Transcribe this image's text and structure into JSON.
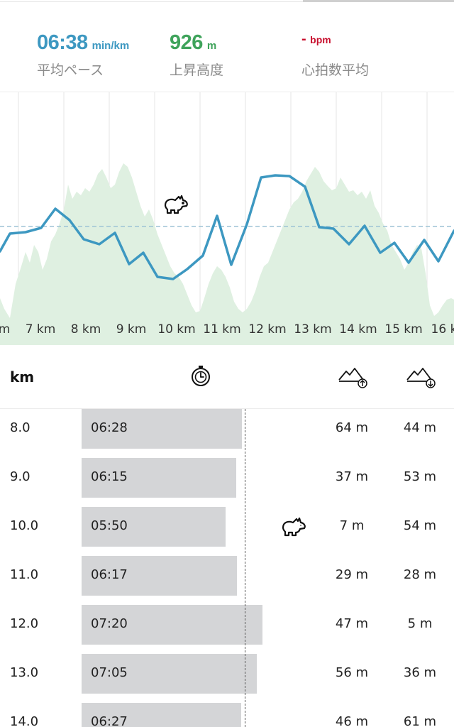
{
  "stats": [
    {
      "value": "06:38",
      "unit": "min/km",
      "label": "平均ペース",
      "color": "#3d98c1"
    },
    {
      "value": "926",
      "unit": "m",
      "label": "上昇高度",
      "color": "#3fa35b"
    },
    {
      "value": "-",
      "unit": "bpm",
      "label": "心拍数平均",
      "color": "#c8102e"
    }
  ],
  "chart": {
    "x_labels": [
      "m",
      "7 km",
      "8 km",
      "9 km",
      "10 km",
      "11 km",
      "12 km",
      "13 km",
      "14 km",
      "15 km",
      "16 k"
    ],
    "icons": [
      "rabbit-icon"
    ]
  },
  "table": {
    "header": {
      "km": "km",
      "icons": [
        "stopwatch-icon",
        "ascent-icon",
        "descent-icon"
      ]
    },
    "rows": [
      {
        "km": "8.0",
        "pace": "06:28",
        "up": "64 m",
        "down": "44 m"
      },
      {
        "km": "9.0",
        "pace": "06:15",
        "up": "37 m",
        "down": "53 m"
      },
      {
        "km": "10.0",
        "pace": "05:50",
        "up": "7 m",
        "down": "54 m",
        "fastest": true
      },
      {
        "km": "11.0",
        "pace": "06:17",
        "up": "29 m",
        "down": "28 m"
      },
      {
        "km": "12.0",
        "pace": "07:20",
        "up": "47 m",
        "down": "5 m"
      },
      {
        "km": "13.0",
        "pace": "07:05",
        "up": "56 m",
        "down": "36 m"
      },
      {
        "km": "14.0",
        "pace": "06:27",
        "up": "46 m",
        "down": "61 m"
      }
    ]
  },
  "colors": {
    "pace_line": "#3d98c1",
    "elevation_fill": "#dff0e1",
    "bar": "#d4d5d7"
  }
}
